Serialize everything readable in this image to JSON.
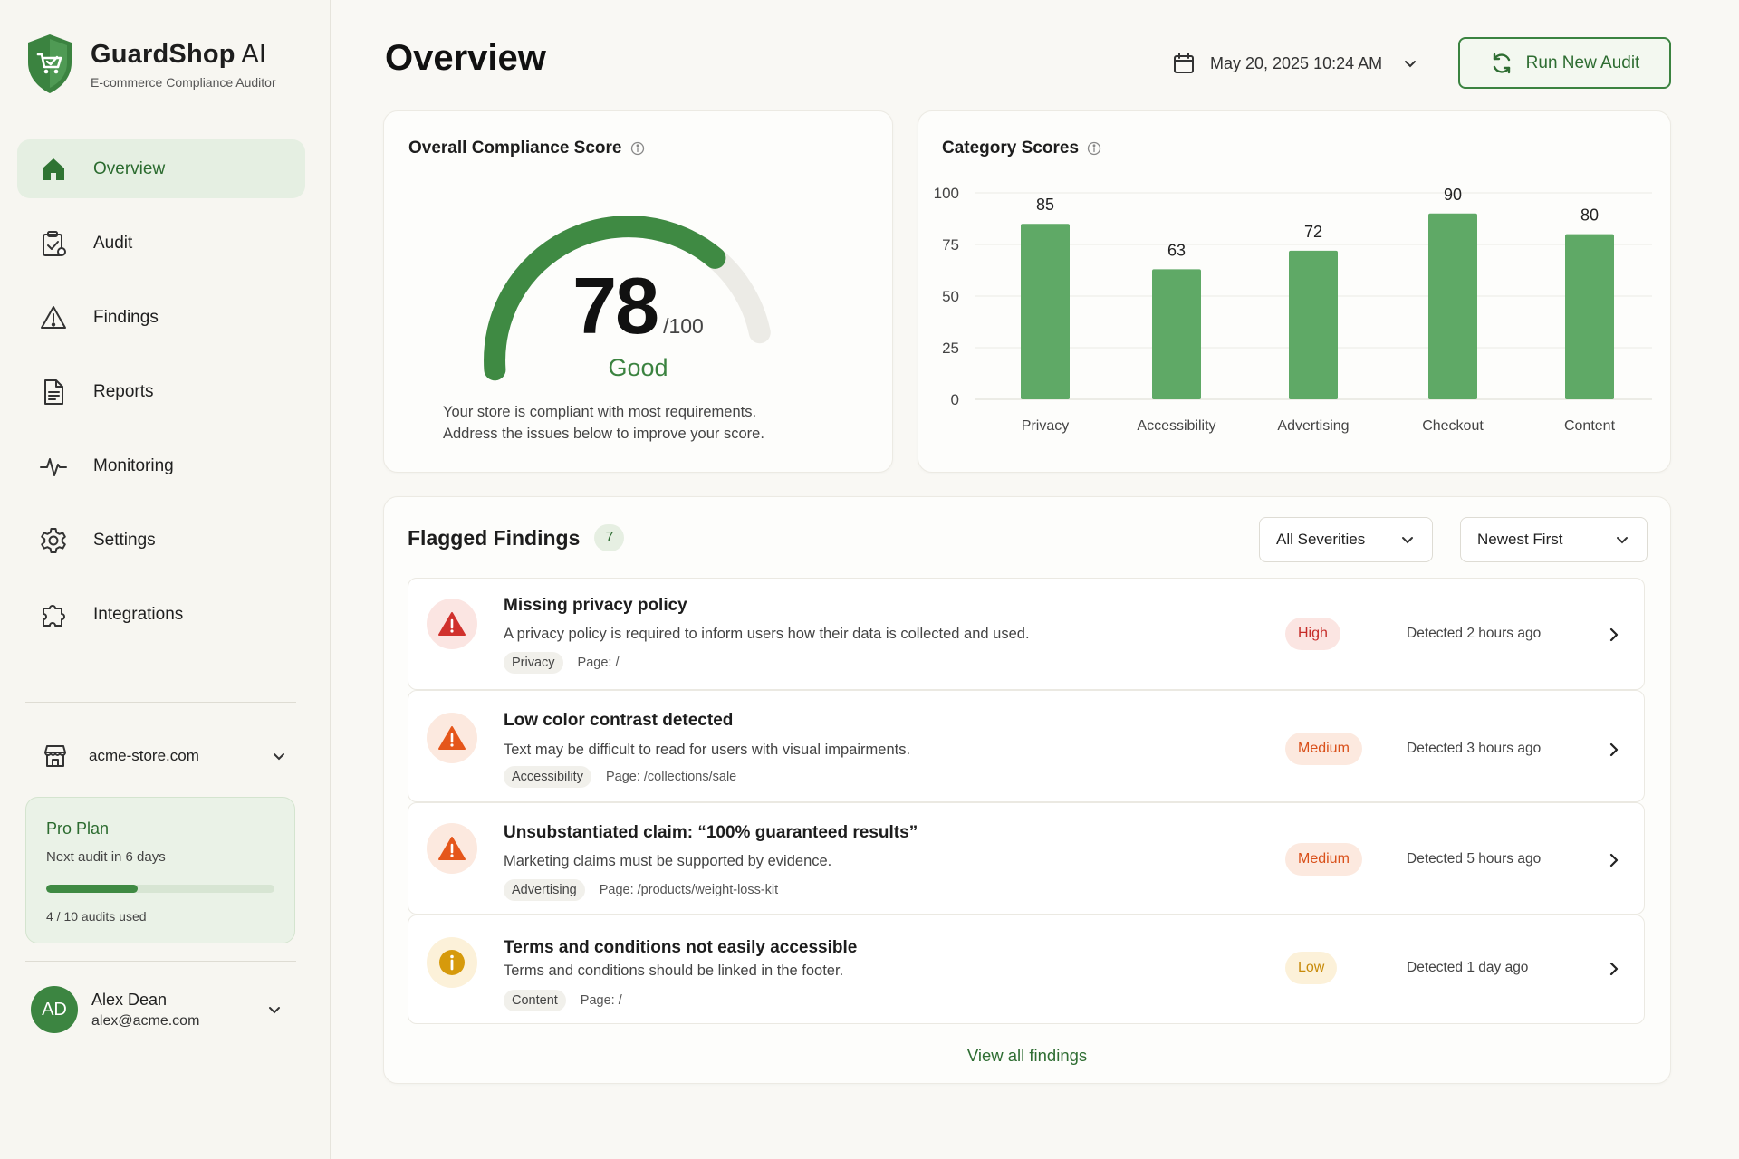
{
  "brand": {
    "name_bold": "GuardShop",
    "name_rest": " AI",
    "tagline": "E-commerce Compliance Auditor",
    "logo_icon": "shield-cart-icon",
    "color": "#3b8340"
  },
  "sidebar": {
    "items": [
      {
        "label": "Overview",
        "icon": "home-icon",
        "active": true
      },
      {
        "label": "Audit",
        "icon": "clipboard-check-icon"
      },
      {
        "label": "Findings",
        "icon": "warning-triangle-icon"
      },
      {
        "label": "Reports",
        "icon": "document-icon"
      },
      {
        "label": "Monitoring",
        "icon": "pulse-icon"
      },
      {
        "label": "Settings",
        "icon": "gear-icon"
      },
      {
        "label": "Integrations",
        "icon": "puzzle-icon"
      }
    ],
    "store": {
      "label": "acme-store.com",
      "icon": "storefront-icon"
    },
    "plan": {
      "title": "Pro Plan",
      "next_audit": "Next audit in 6 days",
      "usage_text": "4 / 10 audits used",
      "used": 4,
      "total": 10
    },
    "user": {
      "initials": "AD",
      "name": "Alex Dean",
      "email": "alex@acme.com"
    }
  },
  "header": {
    "title": "Overview",
    "date": "May 20, 2025 10:24 AM",
    "run_button": "Run New Audit"
  },
  "compliance": {
    "title": "Overall Compliance Score",
    "score": "78",
    "max": "/100",
    "score_value": 78,
    "score_max": 100,
    "rating": "Good",
    "desc_line1": "Your store is compliant with most requirements.",
    "desc_line2": "Address the issues below to improve your score."
  },
  "chart_data": {
    "type": "bar",
    "title": "Category Scores",
    "categories": [
      "Privacy",
      "Accessibility",
      "Advertising",
      "Checkout",
      "Content"
    ],
    "values": [
      85,
      63,
      72,
      90,
      80
    ],
    "ylim": [
      0,
      100
    ],
    "yticks": [
      0,
      25,
      50,
      75,
      100
    ],
    "grid": true,
    "bar_color": "#5fa966"
  },
  "findings": {
    "title": "Flagged Findings",
    "count": "7",
    "filter_severity": "All Severities",
    "sort": "Newest First",
    "items": [
      {
        "title": "Missing privacy policy",
        "desc": "A privacy policy is required to inform users how their data is collected and used.",
        "category": "Privacy",
        "page": "Page: /",
        "severity": "High",
        "detected": "Detected 2 hours ago",
        "icon": "alert-triangle-icon"
      },
      {
        "title": "Low color contrast detected",
        "desc": "Text may be difficult to read for users with visual impairments.",
        "category": "Accessibility",
        "page": "Page: /collections/sale",
        "severity": "Medium",
        "detected": "Detected 3 hours ago",
        "icon": "alert-triangle-icon"
      },
      {
        "title": "Unsubstantiated claim: “100% guaranteed results”",
        "desc": "Marketing claims must be supported by evidence.",
        "category": "Advertising",
        "page": "Page: /products/weight-loss-kit",
        "severity": "Medium",
        "detected": "Detected 5 hours ago",
        "icon": "alert-triangle-icon"
      },
      {
        "title": "Terms and conditions not easily accessible",
        "desc": "Terms and conditions should be linked in the footer.",
        "category": "Content",
        "page": "Page: /",
        "severity": "Low",
        "detected": "Detected 1 day ago",
        "icon": "info-circle-icon"
      }
    ],
    "view_all": "View all findings"
  },
  "colors": {
    "accent": "#3b8340",
    "high": "#d0312d",
    "medium": "#e5561b",
    "low": "#d69a0c"
  }
}
